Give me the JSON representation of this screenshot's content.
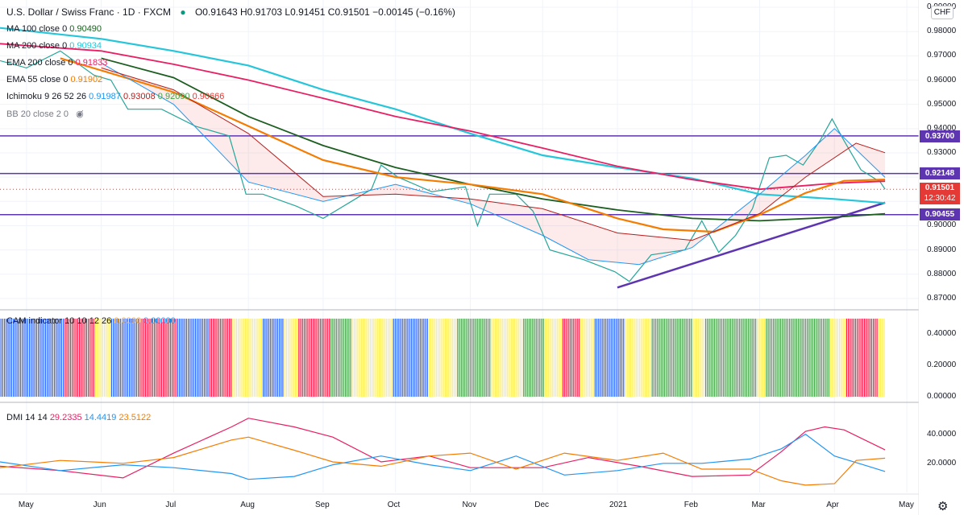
{
  "header": {
    "symbol": "U.S. Dollar / Swiss Franc · 1D · FXCM",
    "ohlc": "O0.91643 H0.91703 L0.91451 C0.91501 −0.00145 (−0.16%)",
    "currency": "CHF",
    "accent_color": "#089981"
  },
  "indicators": {
    "ma100": {
      "label": "MA 100 close 0",
      "value": "0.90490",
      "color": "#1b5e20"
    },
    "ma200": {
      "label": "MA 200 close 0",
      "value": "0.90934",
      "color": "#26c6da"
    },
    "ema200": {
      "label": "EMA 200 close 0",
      "value": "0.91833",
      "color": "#e91e63"
    },
    "ema55": {
      "label": "EMA 55 close 0",
      "value": "0.91902",
      "color": "#f57c00"
    },
    "ichimoku": {
      "label": "Ichimoku 9 26 52 26",
      "values": [
        "0.91987",
        "0.93008",
        "0.92090",
        "0.90666"
      ],
      "colors": [
        "#2196f3",
        "#b71c1c",
        "#43a047",
        "#e53935"
      ]
    },
    "bb": {
      "label": "BB 20 close 2 0"
    },
    "cam": {
      "label": "CAM indicator 10 10 12 26",
      "values": [
        "0.0000",
        "0.00000"
      ]
    },
    "dmi": {
      "label": "DMI 14 14",
      "values": [
        "29.2335",
        "14.4419",
        "23.5122"
      ],
      "colors": [
        "#e91e63",
        "#2196f3",
        "#f57c00"
      ]
    }
  },
  "price_tags": {
    "level_high": "0.93700",
    "level_mid": "0.92148",
    "last": "0.91501",
    "countdown": "12:30:42",
    "level_low": "0.90455",
    "hline_color": "#5e35b1",
    "last_color": "#e53935"
  },
  "chart_data": [
    {
      "type": "line",
      "title": "U.S. Dollar / Swiss Franc · 1D · FXCM",
      "x_tick_labels": [
        "May",
        "Jun",
        "Jul",
        "Aug",
        "Sep",
        "Oct",
        "Nov",
        "Dec",
        "2021",
        "Feb",
        "Mar",
        "Apr",
        "May"
      ],
      "y_tick_labels": [
        "0.87000",
        "0.88000",
        "0.89000",
        "0.90000",
        "0.91000",
        "0.92000",
        "0.93000",
        "0.94000",
        "0.95000",
        "0.96000",
        "0.97000",
        "0.98000",
        "0.99000"
      ],
      "ylim": [
        0.866,
        0.993
      ],
      "horizontal_levels": [
        0.937,
        0.92148,
        0.90455
      ],
      "trendline": {
        "from": [
          "2021-01-01",
          0.8745
        ],
        "to": [
          "2021-04-22",
          0.9095
        ]
      },
      "ohlc_last": {
        "open": 0.91643,
        "high": 0.91703,
        "low": 0.91451,
        "close": 0.91501
      },
      "series": [
        {
          "name": "USD/CHF close",
          "color": "#26a69a",
          "points": [
            [
              "2020-04-20",
              0.968
            ],
            [
              "2020-05-01",
              0.965
            ],
            [
              "2020-05-15",
              0.972
            ],
            [
              "2020-05-29",
              0.962
            ],
            [
              "2020-06-05",
              0.96
            ],
            [
              "2020-06-12",
              0.948
            ],
            [
              "2020-06-26",
              0.948
            ],
            [
              "2020-07-10",
              0.941
            ],
            [
              "2020-07-24",
              0.937
            ],
            [
              "2020-07-31",
              0.913
            ],
            [
              "2020-08-07",
              0.913
            ],
            [
              "2020-08-21",
              0.908
            ],
            [
              "2020-09-01",
              0.903
            ],
            [
              "2020-09-11",
              0.909
            ],
            [
              "2020-09-21",
              0.915
            ],
            [
              "2020-09-25",
              0.925
            ],
            [
              "2020-10-02",
              0.92
            ],
            [
              "2020-10-16",
              0.914
            ],
            [
              "2020-10-30",
              0.916
            ],
            [
              "2020-11-04",
              0.9
            ],
            [
              "2020-11-09",
              0.913
            ],
            [
              "2020-11-20",
              0.913
            ],
            [
              "2020-11-27",
              0.906
            ],
            [
              "2020-12-04",
              0.89
            ],
            [
              "2020-12-18",
              0.886
            ],
            [
              "2020-12-31",
              0.881
            ],
            [
              "2021-01-06",
              0.877
            ],
            [
              "2021-01-15",
              0.888
            ],
            [
              "2021-01-29",
              0.89
            ],
            [
              "2021-02-05",
              0.902
            ],
            [
              "2021-02-12",
              0.889
            ],
            [
              "2021-02-19",
              0.896
            ],
            [
              "2021-02-26",
              0.907
            ],
            [
              "2021-03-05",
              0.928
            ],
            [
              "2021-03-12",
              0.929
            ],
            [
              "2021-03-19",
              0.925
            ],
            [
              "2021-03-26",
              0.935
            ],
            [
              "2021-03-31",
              0.944
            ],
            [
              "2021-04-05",
              0.935
            ],
            [
              "2021-04-12",
              0.923
            ],
            [
              "2021-04-20",
              0.918
            ],
            [
              "2021-04-22",
              0.91501
            ]
          ]
        },
        {
          "name": "MA 100 close 0",
          "color": "#1b5e20",
          "points": [
            [
              "2020-06-01",
              0.969
            ],
            [
              "2020-07-01",
              0.961
            ],
            [
              "2020-08-01",
              0.945
            ],
            [
              "2020-09-01",
              0.933
            ],
            [
              "2020-10-01",
              0.924
            ],
            [
              "2020-11-01",
              0.917
            ],
            [
              "2020-12-01",
              0.911
            ],
            [
              "2021-01-01",
              0.9065
            ],
            [
              "2021-02-01",
              0.903
            ],
            [
              "2021-03-01",
              0.902
            ],
            [
              "2021-04-01",
              0.9035
            ],
            [
              "2021-04-22",
              0.9049
            ]
          ]
        },
        {
          "name": "MA 200 close 0",
          "color": "#26c6da",
          "points": [
            [
              "2020-04-20",
              0.9815
            ],
            [
              "2020-06-01",
              0.977
            ],
            [
              "2020-07-01",
              0.972
            ],
            [
              "2020-08-01",
              0.966
            ],
            [
              "2020-09-01",
              0.956
            ],
            [
              "2020-10-01",
              0.948
            ],
            [
              "2020-11-01",
              0.938
            ],
            [
              "2020-12-01",
              0.929
            ],
            [
              "2021-01-01",
              0.924
            ],
            [
              "2021-02-01",
              0.9195
            ],
            [
              "2021-03-01",
              0.913
            ],
            [
              "2021-04-01",
              0.911
            ],
            [
              "2021-04-22",
              0.90934
            ]
          ]
        },
        {
          "name": "EMA 200 close 0",
          "color": "#e91e63",
          "points": [
            [
              "2020-04-20",
              0.975
            ],
            [
              "2020-06-01",
              0.972
            ],
            [
              "2020-07-01",
              0.9665
            ],
            [
              "2020-08-01",
              0.96
            ],
            [
              "2020-09-01",
              0.9525
            ],
            [
              "2020-10-01",
              0.945
            ],
            [
              "2020-11-01",
              0.939
            ],
            [
              "2020-12-01",
              0.932
            ],
            [
              "2021-01-01",
              0.9245
            ],
            [
              "2021-02-01",
              0.919
            ],
            [
              "2021-03-01",
              0.915
            ],
            [
              "2021-04-01",
              0.9175
            ],
            [
              "2021-04-22",
              0.91833
            ]
          ]
        },
        {
          "name": "EMA 55 close 0",
          "color": "#f57c00",
          "points": [
            [
              "2020-05-15",
              0.969
            ],
            [
              "2020-06-01",
              0.964
            ],
            [
              "2020-07-01",
              0.955
            ],
            [
              "2020-08-01",
              0.941
            ],
            [
              "2020-09-01",
              0.927
            ],
            [
              "2020-10-01",
              0.92
            ],
            [
              "2020-11-01",
              0.917
            ],
            [
              "2020-12-01",
              0.913
            ],
            [
              "2021-01-01",
              0.903
            ],
            [
              "2021-01-20",
              0.8985
            ],
            [
              "2021-02-10",
              0.8975
            ],
            [
              "2021-03-01",
              0.9045
            ],
            [
              "2021-03-20",
              0.9135
            ],
            [
              "2021-04-05",
              0.9185
            ],
            [
              "2021-04-22",
              0.91902
            ]
          ]
        },
        {
          "name": "Ichimoku conversion",
          "color": "#2196f3",
          "points": [
            [
              "2020-06-01",
              0.967
            ],
            [
              "2020-07-01",
              0.95
            ],
            [
              "2020-08-01",
              0.918
            ],
            [
              "2020-09-01",
              0.91
            ],
            [
              "2020-10-01",
              0.917
            ],
            [
              "2020-11-01",
              0.909
            ],
            [
              "2020-12-01",
              0.896
            ],
            [
              "2020-12-20",
              0.886
            ],
            [
              "2021-01-10",
              0.884
            ],
            [
              "2021-02-01",
              0.891
            ],
            [
              "2021-03-01",
              0.913
            ],
            [
              "2021-03-20",
              0.929
            ],
            [
              "2021-04-01",
              0.94
            ],
            [
              "2021-04-22",
              0.91987
            ]
          ]
        },
        {
          "name": "Ichimoku base",
          "color": "#b71c1c",
          "points": [
            [
              "2020-06-01",
              0.965
            ],
            [
              "2020-07-01",
              0.956
            ],
            [
              "2020-08-01",
              0.938
            ],
            [
              "2020-09-01",
              0.912
            ],
            [
              "2020-10-01",
              0.913
            ],
            [
              "2020-11-01",
              0.911
            ],
            [
              "2020-12-01",
              0.907
            ],
            [
              "2021-01-01",
              0.897
            ],
            [
              "2021-02-01",
              0.894
            ],
            [
              "2021-03-01",
              0.905
            ],
            [
              "2021-03-20",
              0.92
            ],
            [
              "2021-04-10",
              0.934
            ],
            [
              "2021-04-22",
              0.93008
            ]
          ]
        }
      ]
    },
    {
      "type": "bar",
      "title": "CAM indicator 10 10 12 26",
      "y_tick_labels": [
        "0.00000",
        "0.20000",
        "0.40000"
      ],
      "ylim": [
        0,
        0.5
      ],
      "bar_value": 0.5,
      "colors": {
        "B": "#2962ff",
        "R": "#ff1744",
        "Y": "#ffee58",
        "G": "#43a047"
      },
      "sequence": "BBBBBBBBBBBBBBBBBBBBBBBBBBBBBBBBBBBBRRRRRRRRRRRRRRRRRYYYYYYYYYBBBBBBBBBBBBBBBRRRRRRRRRRRRRRRRRRRRRRBBBBBBBBBBBBBBBBBBRRRRRRRRRRRRRYYYYYYYYYYYYYYYYYBBBBBBBBBBBBYYYYYYYYRRRRRRRRRRRRRRRRRRGGGGGGGGGGGGYYYYYYYYYYYYYYYYYYYYYYYBBBBBBBBBBBBBBBBBBBBYYYYYYYYYYYYYYYYGGGGGGGGGGGGGGGGGGGYYYYYYYYYYYYYYYYYYGGGGGGGGGGGGYYYYYYYYYYRRRRRRRRRRYYYYYYYYBBBBBBBBBBBBBBBBBYYYYYYYYYYYYYYYGGGGGGGGGGGGGGGGGGGGGGGYYYYYYYGGGGGGGGGGGGGGGGGGGGGGGGGGGGGYYYYYGGGGGGGGGGGGGGGGGGGGGGGGGGGGGGGGGGGGYYYYYYYYYRRRRRRRRRRRRRRRRRRYYYY"
    },
    {
      "type": "line",
      "title": "DMI 14 14",
      "y_tick_labels": [
        "20.0000",
        "40.0000"
      ],
      "ylim": [
        0,
        58
      ],
      "series": [
        {
          "name": "29.2335",
          "color": "#e91e63",
          "points": [
            [
              "2020-04-20",
              18
            ],
            [
              "2020-05-15",
              15
            ],
            [
              "2020-06-10",
              10
            ],
            [
              "2020-07-01",
              27
            ],
            [
              "2020-07-25",
              45
            ],
            [
              "2020-08-01",
              51
            ],
            [
              "2020-08-20",
              45
            ],
            [
              "2020-09-05",
              38
            ],
            [
              "2020-09-25",
              21
            ],
            [
              "2020-10-15",
              25
            ],
            [
              "2020-11-01",
              17
            ],
            [
              "2020-12-01",
              17
            ],
            [
              "2020-12-20",
              24
            ],
            [
              "2021-01-10",
              18
            ],
            [
              "2021-02-01",
              11
            ],
            [
              "2021-02-25",
              12
            ],
            [
              "2021-03-10",
              28
            ],
            [
              "2021-03-20",
              42
            ],
            [
              "2021-03-28",
              45
            ],
            [
              "2021-04-05",
              43
            ],
            [
              "2021-04-22",
              29.2335
            ]
          ]
        },
        {
          "name": "14.4419",
          "color": "#2196f3",
          "points": [
            [
              "2020-04-20",
              21
            ],
            [
              "2020-05-15",
              15
            ],
            [
              "2020-06-10",
              19
            ],
            [
              "2020-07-01",
              17
            ],
            [
              "2020-07-25",
              13
            ],
            [
              "2020-08-01",
              9
            ],
            [
              "2020-08-20",
              11
            ],
            [
              "2020-09-05",
              19
            ],
            [
              "2020-09-25",
              25
            ],
            [
              "2020-10-15",
              19
            ],
            [
              "2020-11-01",
              15
            ],
            [
              "2020-11-20",
              25
            ],
            [
              "2020-12-10",
              12
            ],
            [
              "2021-01-01",
              15
            ],
            [
              "2021-01-20",
              20
            ],
            [
              "2021-02-05",
              20
            ],
            [
              "2021-02-25",
              23
            ],
            [
              "2021-03-10",
              30
            ],
            [
              "2021-03-20",
              40
            ],
            [
              "2021-04-01",
              25
            ],
            [
              "2021-04-15",
              18
            ],
            [
              "2021-04-22",
              14.4419
            ]
          ]
        },
        {
          "name": "23.5122",
          "color": "#f57c00",
          "points": [
            [
              "2020-04-20",
              17
            ],
            [
              "2020-05-15",
              22
            ],
            [
              "2020-06-10",
              20
            ],
            [
              "2020-07-01",
              24
            ],
            [
              "2020-07-25",
              36
            ],
            [
              "2020-08-01",
              38
            ],
            [
              "2020-08-20",
              29
            ],
            [
              "2020-09-05",
              21
            ],
            [
              "2020-09-25",
              18
            ],
            [
              "2020-10-15",
              25
            ],
            [
              "2020-11-01",
              27
            ],
            [
              "2020-11-20",
              16
            ],
            [
              "2020-12-10",
              27
            ],
            [
              "2021-01-01",
              22
            ],
            [
              "2021-01-20",
              27
            ],
            [
              "2021-02-05",
              16
            ],
            [
              "2021-02-25",
              16
            ],
            [
              "2021-03-10",
              8
            ],
            [
              "2021-03-20",
              5
            ],
            [
              "2021-04-01",
              6
            ],
            [
              "2021-04-10",
              22
            ],
            [
              "2021-04-22",
              23.5122
            ]
          ]
        }
      ]
    }
  ]
}
